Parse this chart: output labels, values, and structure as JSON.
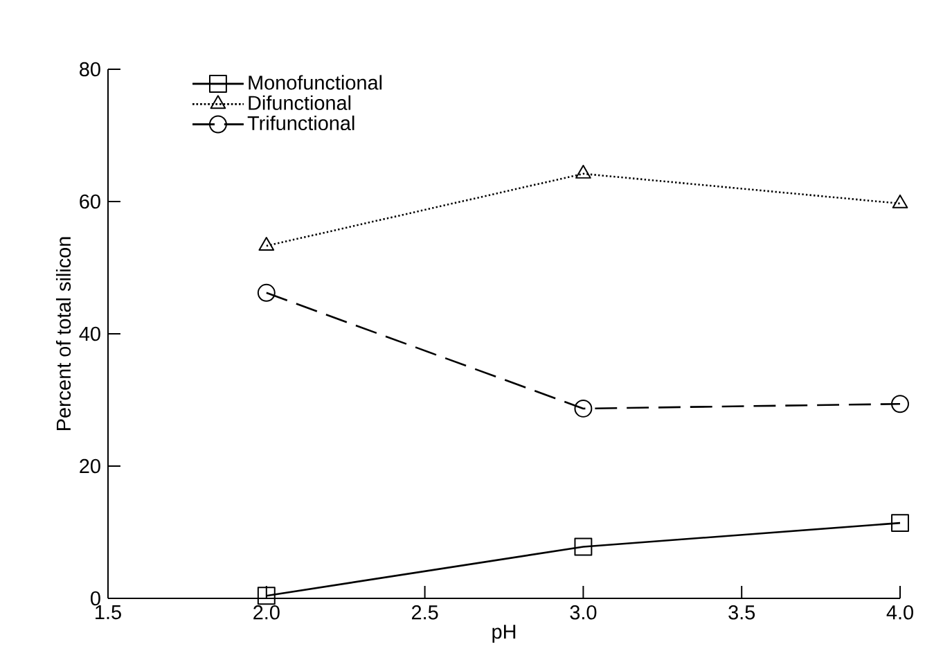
{
  "chart_data": {
    "type": "line",
    "xlabel": "pH",
    "ylabel": "Percent of total silicon",
    "x": [
      2.0,
      3.0,
      4.0
    ],
    "series": [
      {
        "name": "Monofunctional",
        "color": "#000000",
        "marker": "square",
        "line_style": "solid",
        "values": [
          0.4,
          7.8,
          11.4
        ]
      },
      {
        "name": "Difunctional",
        "color": "#000000",
        "marker": "triangle",
        "line_style": "dotted",
        "values": [
          53.3,
          64.2,
          59.7
        ]
      },
      {
        "name": "Trifunctional",
        "color": "#000000",
        "marker": "circle",
        "line_style": "dashed",
        "values": [
          46.2,
          28.7,
          29.4
        ]
      }
    ],
    "xlim": [
      1.5,
      4.0
    ],
    "ylim": [
      0,
      80
    ],
    "xticks": [
      {
        "value": 1.5,
        "label": "1.5"
      },
      {
        "value": 2.0,
        "label": "2.0"
      },
      {
        "value": 2.5,
        "label": "2.5"
      },
      {
        "value": 3.0,
        "label": "3.0"
      },
      {
        "value": 3.5,
        "label": "3.5"
      },
      {
        "value": 4.0,
        "label": "4.0"
      }
    ],
    "yticks": [
      0,
      20,
      40,
      60,
      80
    ],
    "legend": "top left"
  }
}
